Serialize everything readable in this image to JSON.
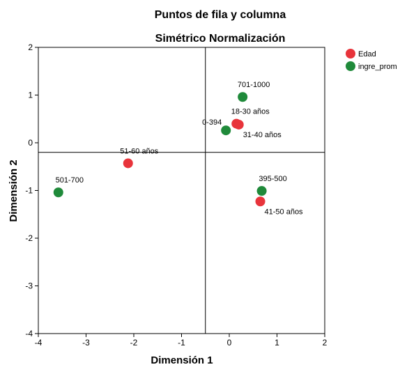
{
  "chart_data": {
    "type": "scatter",
    "title": "Puntos de fila y columna",
    "subtitle": "Simétrico Normalización",
    "xlabel": "Dimensión 1",
    "ylabel": "Dimensión 2",
    "xlim": [
      -4,
      2
    ],
    "ylim": [
      -4,
      2
    ],
    "xticks": [
      "-4",
      "-3",
      "-2",
      "-1",
      "0",
      "1",
      "2"
    ],
    "yticks": [
      "-4",
      "-3",
      "-2",
      "-1",
      "0",
      "1",
      "2"
    ],
    "reference_lines": {
      "x": -0.5,
      "y": -0.2
    },
    "grid": false,
    "legend_position": "top-right",
    "series": [
      {
        "name": "Edad",
        "color": "#e8343b",
        "points": [
          {
            "label": "18-30 años",
            "x": 0.15,
            "y": 0.4
          },
          {
            "label": "31-40 años",
            "x": 0.2,
            "y": 0.38
          },
          {
            "label": "41-50 años",
            "x": 0.65,
            "y": -1.23
          },
          {
            "label": "51-60 años",
            "x": -2.12,
            "y": -0.43
          }
        ]
      },
      {
        "name": "ingre_prom",
        "color": "#1f8a3a",
        "points": [
          {
            "label": "0-394",
            "x": -0.07,
            "y": 0.26
          },
          {
            "label": "395-500",
            "x": 0.68,
            "y": -1.01
          },
          {
            "label": "501-700",
            "x": -3.58,
            "y": -1.04
          },
          {
            "label": "701-1000",
            "x": 0.28,
            "y": 0.96
          }
        ]
      }
    ]
  }
}
